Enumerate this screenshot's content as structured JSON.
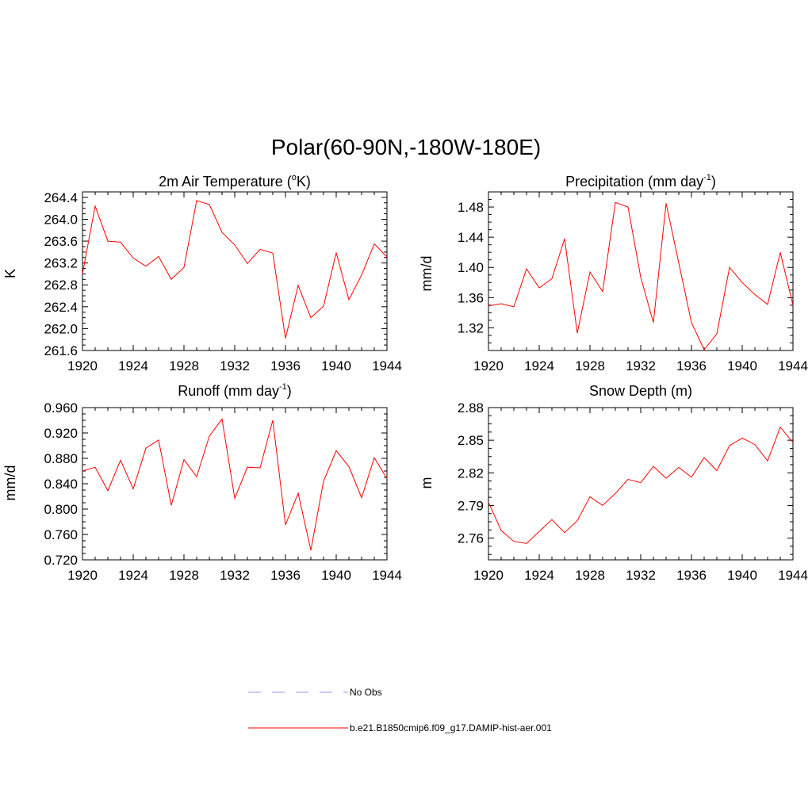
{
  "title": "Polar(60-90N,-180W-180E)",
  "colors": {
    "model": "#ff0000",
    "obs": "#9999ee"
  },
  "legend": [
    {
      "label": "No Obs",
      "style": "dashed",
      "color": "#9999ee"
    },
    {
      "label": "b.e21.B1850cmip6.f09_g17.DAMIP-hist-aer.001",
      "style": "solid",
      "color": "#ff0000"
    }
  ],
  "panels": [
    {
      "id": "temp",
      "title_main": "2m Air Temperature (",
      "title_sup": "o",
      "title_end": "K)",
      "ylabel": "K"
    },
    {
      "id": "precip",
      "title_main": "Precipitation (mm day",
      "title_sup": "-1",
      "title_end": ")",
      "ylabel": "mm/d"
    },
    {
      "id": "runoff",
      "title_main": "Runoff (mm day",
      "title_sup": "-1",
      "title_end": ")",
      "ylabel": "mm/d"
    },
    {
      "id": "snow",
      "title_main": "Snow Depth (m)",
      "title_sup": "",
      "title_end": "",
      "ylabel": "m"
    }
  ],
  "chart_data": [
    {
      "type": "line",
      "title": "2m Air Temperature (oK)",
      "ylabel": "K",
      "xlim": [
        1920,
        1944
      ],
      "ylim": [
        261.6,
        264.5
      ],
      "xticks": [
        "1920",
        "1924",
        "1928",
        "1932",
        "1936",
        "1940",
        "1944"
      ],
      "yticks": [
        "261.6",
        "262.0",
        "262.4",
        "262.8",
        "263.2",
        "263.6",
        "264.0",
        "264.4"
      ],
      "x": [
        1920,
        1921,
        1922,
        1923,
        1924,
        1925,
        1926,
        1927,
        1928,
        1929,
        1930,
        1931,
        1932,
        1933,
        1934,
        1935,
        1936,
        1937,
        1938,
        1939,
        1940,
        1941,
        1942,
        1943,
        1944
      ],
      "series": [
        {
          "name": "b.e21.B1850cmip6.f09_g17.DAMIP-hist-aer.001",
          "values": [
            263.0,
            264.24,
            263.6,
            263.58,
            263.29,
            263.14,
            263.32,
            262.9,
            263.12,
            264.34,
            264.27,
            263.76,
            263.53,
            263.19,
            263.45,
            263.38,
            261.82,
            262.79,
            262.2,
            262.41,
            263.39,
            262.53,
            262.98,
            263.55,
            263.31
          ]
        }
      ]
    },
    {
      "type": "line",
      "title": "Precipitation (mm day-1)",
      "ylabel": "mm/d",
      "xlim": [
        1920,
        1944
      ],
      "ylim": [
        1.29,
        1.5
      ],
      "xticks": [
        "1920",
        "1924",
        "1928",
        "1932",
        "1936",
        "1940",
        "1944"
      ],
      "yticks": [
        "1.32",
        "1.36",
        "1.40",
        "1.44",
        "1.48"
      ],
      "x": [
        1920,
        1921,
        1922,
        1923,
        1924,
        1925,
        1926,
        1927,
        1928,
        1929,
        1930,
        1931,
        1932,
        1933,
        1934,
        1935,
        1936,
        1937,
        1938,
        1939,
        1940,
        1941,
        1942,
        1943,
        1944
      ],
      "series": [
        {
          "name": "b.e21.B1850cmip6.f09_g17.DAMIP-hist-aer.001",
          "values": [
            1.349,
            1.352,
            1.348,
            1.398,
            1.373,
            1.385,
            1.438,
            1.313,
            1.394,
            1.368,
            1.486,
            1.48,
            1.387,
            1.327,
            1.485,
            1.406,
            1.327,
            1.291,
            1.312,
            1.4,
            1.38,
            1.364,
            1.351,
            1.42,
            1.35
          ]
        }
      ]
    },
    {
      "type": "line",
      "title": "Runoff (mm day-1)",
      "ylabel": "mm/d",
      "xlim": [
        1920,
        1944
      ],
      "ylim": [
        0.72,
        0.96
      ],
      "xticks": [
        "1920",
        "1924",
        "1928",
        "1932",
        "1936",
        "1940",
        "1944"
      ],
      "yticks": [
        "0.720",
        "0.760",
        "0.800",
        "0.840",
        "0.880",
        "0.920",
        "0.960"
      ],
      "x": [
        1920,
        1921,
        1922,
        1923,
        1924,
        1925,
        1926,
        1927,
        1928,
        1929,
        1930,
        1931,
        1932,
        1933,
        1934,
        1935,
        1936,
        1937,
        1938,
        1939,
        1940,
        1941,
        1942,
        1943,
        1944
      ],
      "series": [
        {
          "name": "b.e21.B1850cmip6.f09_g17.DAMIP-hist-aer.001",
          "values": [
            0.86,
            0.866,
            0.829,
            0.877,
            0.832,
            0.896,
            0.909,
            0.806,
            0.878,
            0.851,
            0.915,
            0.942,
            0.817,
            0.866,
            0.865,
            0.94,
            0.775,
            0.825,
            0.735,
            0.844,
            0.892,
            0.867,
            0.818,
            0.881,
            0.848
          ]
        }
      ]
    },
    {
      "type": "line",
      "title": "Snow Depth (m)",
      "ylabel": "m",
      "xlim": [
        1920,
        1944
      ],
      "ylim": [
        2.74,
        2.88
      ],
      "xticks": [
        "1920",
        "1924",
        "1928",
        "1932",
        "1936",
        "1940",
        "1944"
      ],
      "yticks": [
        "2.76",
        "2.79",
        "2.82",
        "2.85",
        "2.88"
      ],
      "x": [
        1920,
        1921,
        1922,
        1923,
        1924,
        1925,
        1926,
        1927,
        1928,
        1929,
        1930,
        1931,
        1932,
        1933,
        1934,
        1935,
        1936,
        1937,
        1938,
        1939,
        1940,
        1941,
        1942,
        1943,
        1944
      ],
      "series": [
        {
          "name": "b.e21.B1850cmip6.f09_g17.DAMIP-hist-aer.001",
          "values": [
            2.793,
            2.767,
            2.757,
            2.755,
            2.766,
            2.777,
            2.765,
            2.776,
            2.798,
            2.79,
            2.801,
            2.814,
            2.811,
            2.826,
            2.815,
            2.825,
            2.816,
            2.834,
            2.822,
            2.845,
            2.852,
            2.846,
            2.831,
            2.862,
            2.848
          ]
        }
      ]
    }
  ]
}
